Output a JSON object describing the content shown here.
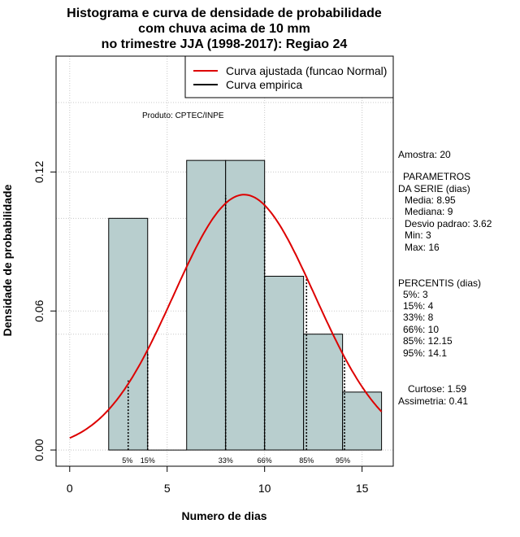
{
  "chart_data": {
    "type": "histogram",
    "title_lines": [
      "Histograma e curva de densidade de probabilidade",
      "com chuva acima de 10 mm",
      "no trimestre JJA (1998-2017): Regiao 24"
    ],
    "xlabel": "Numero de dias",
    "ylabel": "Densidade de probabilidade",
    "xlim": [
      -0.7,
      16.6
    ],
    "ylim": [
      -0.007,
      0.17
    ],
    "x_ticks": [
      0,
      5,
      10,
      15
    ],
    "y_ticks": [
      0.0,
      0.06,
      0.12
    ],
    "y_tick_labels": [
      "0.00",
      "0.06",
      "0.12"
    ],
    "grid_y": [
      0.0,
      0.06,
      0.12
    ],
    "grid_y_minor": [
      0.05,
      0.1,
      0.15
    ],
    "bins": [
      {
        "x0": 2,
        "x1": 4,
        "density": 0.1
      },
      {
        "x0": 4,
        "x1": 6,
        "density": 0.0
      },
      {
        "x0": 6,
        "x1": 8,
        "density": 0.125
      },
      {
        "x0": 8,
        "x1": 10,
        "density": 0.125
      },
      {
        "x0": 10,
        "x1": 12,
        "density": 0.075
      },
      {
        "x0": 12,
        "x1": 14,
        "density": 0.05
      },
      {
        "x0": 14,
        "x1": 16,
        "density": 0.025
      }
    ],
    "bar_color": "#b8cece",
    "normal_curve": {
      "mean": 8.95,
      "sd": 3.62,
      "from": 0,
      "to": 16,
      "color": "#dd0000"
    },
    "percentile_lines": [
      {
        "label": "5%",
        "x": 3,
        "top": 0.03
      },
      {
        "label": "15%",
        "x": 4,
        "top": 0.042
      },
      {
        "label": "33%",
        "x": 8,
        "top": 0.11
      },
      {
        "label": "66%",
        "x": 10,
        "top": 0.108
      },
      {
        "label": "85%",
        "x": 12.15,
        "top": 0.075
      },
      {
        "label": "95%",
        "x": 14.1,
        "top": 0.04
      }
    ],
    "legend": [
      {
        "label": "Curva ajustada (funcao Normal)",
        "color": "#dd0000"
      },
      {
        "label": "Curva empirica",
        "color": "#000000"
      }
    ],
    "legend_position": "top-right",
    "annotation": "Produto: CPTEC/INPE"
  },
  "stats_panel": {
    "amostra": "Amostra: 20",
    "parametros_title": "PARAMETROS",
    "parametros_subtitle": "DA SERIE (dias)",
    "parametros": [
      "Media: 8.95",
      "Mediana: 9",
      "Desvio padrao: 3.62",
      "Min: 3",
      "Max: 16"
    ],
    "percentis_title": "PERCENTIS (dias)",
    "percentis": [
      "5%: 3",
      "15%: 4",
      "33%: 8",
      "66%: 10",
      "85%: 12.15",
      "95%: 14.1"
    ],
    "curtose": "Curtose: 1.59",
    "assimetria": "Assimetria: 0.41"
  }
}
